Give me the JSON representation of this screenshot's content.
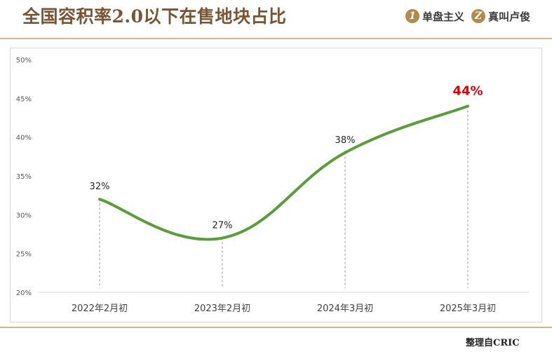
{
  "header": {
    "title": "全国容积率2.0以下在售地块占比",
    "brand1": {
      "mark": "1",
      "name": "单盘主义"
    },
    "brand2": {
      "mark": "Z",
      "name": "真叫卢俊"
    }
  },
  "footer": {
    "source": "整理自CRIC"
  },
  "colors": {
    "line": "#5a9e3c",
    "highlight": "#e00000",
    "accent": "#d7b48a"
  },
  "chart_data": {
    "type": "line",
    "categories": [
      "2022年2月初",
      "2023年2月初",
      "2024年3月初",
      "2025年3月初"
    ],
    "values": [
      32,
      27,
      38,
      44
    ],
    "data_labels": [
      "32%",
      "27%",
      "38%",
      "44%"
    ],
    "yticks": [
      "20%",
      "25%",
      "30%",
      "35%",
      "40%",
      "45%",
      "50%"
    ],
    "ylim": [
      20,
      50
    ],
    "highlight_index": 3,
    "smooth": true,
    "grid": false
  }
}
